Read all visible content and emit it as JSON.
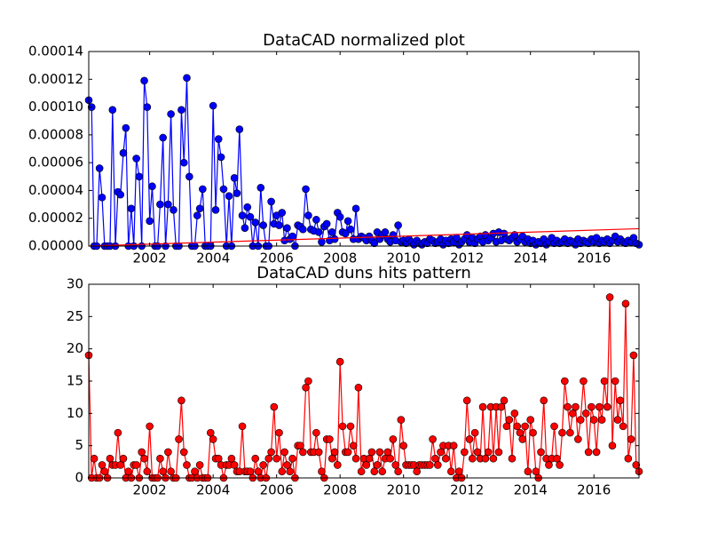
{
  "chart_data": [
    {
      "type": "line",
      "title": "DataCAD normalized plot",
      "xlim": [
        2000.08,
        2017.42
      ],
      "xticks": [
        2002,
        2004,
        2006,
        2008,
        2010,
        2012,
        2014,
        2016
      ],
      "ylim": [
        0,
        0.00014
      ],
      "yticks": [
        {
          "value": 0,
          "label": "0.00000"
        },
        {
          "value": 2e-05,
          "label": "0.00002"
        },
        {
          "value": 4e-05,
          "label": "0.00004"
        },
        {
          "value": 6e-05,
          "label": "0.00006"
        },
        {
          "value": 8e-05,
          "label": "0.00008"
        },
        {
          "value": 0.0001,
          "label": "0.00010"
        },
        {
          "value": 0.00012,
          "label": "0.00012"
        },
        {
          "value": 0.00014,
          "label": "0.00014"
        }
      ],
      "series": [
        {
          "color": "#0000ff",
          "marker": true,
          "x": [
            2000.08,
            2000.17,
            2000.25,
            2000.33,
            2000.42,
            2000.5,
            2000.58,
            2000.67,
            2000.75,
            2000.83,
            2000.92,
            2001,
            2001.08,
            2001.17,
            2001.25,
            2001.33,
            2001.42,
            2001.5,
            2001.58,
            2001.67,
            2001.75,
            2001.83,
            2001.92,
            2002,
            2002.08,
            2002.17,
            2002.25,
            2002.33,
            2002.42,
            2002.5,
            2002.58,
            2002.67,
            2002.75,
            2002.83,
            2002.92,
            2003,
            2003.08,
            2003.17,
            2003.25,
            2003.33,
            2003.42,
            2003.5,
            2003.58,
            2003.67,
            2003.75,
            2003.83,
            2003.92,
            2004,
            2004.08,
            2004.17,
            2004.25,
            2004.33,
            2004.42,
            2004.5,
            2004.58,
            2004.67,
            2004.75,
            2004.83,
            2004.92,
            2005,
            2005.08,
            2005.17,
            2005.25,
            2005.33,
            2005.42,
            2005.5,
            2005.58,
            2005.67,
            2005.75,
            2005.83,
            2005.92,
            2006,
            2006.08,
            2006.17,
            2006.25,
            2006.33,
            2006.42,
            2006.5,
            2006.58,
            2006.67,
            2006.75,
            2006.83,
            2006.92,
            2007,
            2007.08,
            2007.17,
            2007.25,
            2007.33,
            2007.42,
            2007.5,
            2007.58,
            2007.67,
            2007.75,
            2007.83,
            2007.92,
            2008,
            2008.08,
            2008.17,
            2008.25,
            2008.33,
            2008.42,
            2008.5,
            2008.58,
            2008.67,
            2008.75,
            2008.83,
            2008.92,
            2009,
            2009.08,
            2009.17,
            2009.25,
            2009.33,
            2009.42,
            2009.5,
            2009.58,
            2009.67,
            2009.75,
            2009.83,
            2009.92,
            2010,
            2010.08,
            2010.17,
            2010.25,
            2010.33,
            2010.42,
            2010.5,
            2010.58,
            2010.67,
            2010.75,
            2010.83,
            2010.92,
            2011,
            2011.08,
            2011.17,
            2011.25,
            2011.33,
            2011.42,
            2011.5,
            2011.58,
            2011.67,
            2011.75,
            2011.83,
            2011.92,
            2012,
            2012.08,
            2012.17,
            2012.25,
            2012.33,
            2012.42,
            2012.5,
            2012.58,
            2012.67,
            2012.75,
            2012.83,
            2012.92,
            2013,
            2013.08,
            2013.17,
            2013.25,
            2013.33,
            2013.42,
            2013.5,
            2013.58,
            2013.67,
            2013.75,
            2013.83,
            2013.92,
            2014,
            2014.08,
            2014.17,
            2014.25,
            2014.33,
            2014.42,
            2014.5,
            2014.58,
            2014.67,
            2014.75,
            2014.83,
            2014.92,
            2015,
            2015.08,
            2015.17,
            2015.25,
            2015.33,
            2015.42,
            2015.5,
            2015.58,
            2015.67,
            2015.75,
            2015.83,
            2015.92,
            2016,
            2016.08,
            2016.17,
            2016.25,
            2016.33,
            2016.42,
            2016.5,
            2016.58,
            2016.67,
            2016.75,
            2016.83,
            2016.92,
            2017,
            2017.08,
            2017.17,
            2017.25,
            2017.33,
            2017.42
          ],
          "values": [
            0.000105,
            0.0001,
            0,
            0,
            5.6e-05,
            3.5e-05,
            0,
            0,
            0,
            9.8e-05,
            0,
            3.9e-05,
            3.7e-05,
            6.7e-05,
            8.5e-05,
            0,
            2.7e-05,
            0,
            6.3e-05,
            5e-05,
            0,
            0.000119,
            0.0001,
            1.8e-05,
            4.3e-05,
            0,
            0,
            3e-05,
            7.8e-05,
            0,
            3e-05,
            9.5e-05,
            2.6e-05,
            0,
            0,
            9.8e-05,
            6e-05,
            0.000121,
            5e-05,
            0,
            0,
            2.2e-05,
            2.7e-05,
            4.1e-05,
            0,
            0,
            0,
            0.000101,
            2.6e-05,
            7.7e-05,
            6.4e-05,
            4.1e-05,
            0,
            3.6e-05,
            0,
            4.9e-05,
            3.8e-05,
            8.4e-05,
            2.2e-05,
            1.3e-05,
            2.8e-05,
            2.1e-05,
            0,
            1.7e-05,
            0,
            4.2e-05,
            1.5e-05,
            0,
            0,
            3.2e-05,
            1.6e-05,
            2.2e-05,
            1.5e-05,
            2.4e-05,
            4e-06,
            1.3e-05,
            5e-06,
            7e-06,
            0,
            1.5e-05,
            1.4e-05,
            1.2e-05,
            4.1e-05,
            2.2e-05,
            1.2e-05,
            1.1e-05,
            1.9e-05,
            1e-05,
            3e-06,
            1.4e-05,
            1.6e-05,
            4e-06,
            1e-05,
            5e-06,
            2.4e-05,
            2.1e-05,
            1e-05,
            9e-06,
            1.8e-05,
            1.2e-05,
            5e-06,
            2.7e-05,
            5e-06,
            7e-06,
            6e-06,
            4e-06,
            7e-06,
            4e-06,
            2e-06,
            1e-05,
            5e-06,
            8e-06,
            1e-05,
            5e-06,
            3e-06,
            8e-06,
            4e-06,
            1.5e-05,
            3e-06,
            4e-06,
            2e-06,
            5e-06,
            3e-06,
            1e-06,
            4e-06,
            2e-06,
            1e-06,
            3e-06,
            2e-06,
            5e-06,
            4e-06,
            2e-06,
            3e-06,
            5e-06,
            1e-06,
            4e-06,
            2e-06,
            5e-06,
            3e-06,
            6e-06,
            1e-06,
            3e-06,
            5e-06,
            8e-06,
            3e-06,
            6e-06,
            2e-06,
            5e-06,
            7e-06,
            3e-06,
            8e-06,
            4e-06,
            6e-06,
            9e-06,
            3e-06,
            1e-05,
            4e-06,
            9e-06,
            5e-06,
            4e-06,
            6e-06,
            8e-06,
            3e-06,
            5e-06,
            7e-06,
            3e-06,
            5e-06,
            2e-06,
            4e-06,
            1e-06,
            3e-06,
            2e-06,
            5e-06,
            1e-06,
            3e-06,
            6e-06,
            2e-06,
            4e-06,
            2e-06,
            3e-06,
            5e-06,
            2e-06,
            4e-06,
            3e-06,
            1e-06,
            5e-06,
            2e-06,
            4e-06,
            3e-06,
            2e-06,
            5e-06,
            3e-06,
            6e-06,
            2e-06,
            4e-06,
            3e-06,
            5e-06,
            2e-06,
            4e-06,
            7e-06,
            3e-06,
            5e-06,
            3e-06,
            2e-06,
            4e-06,
            3e-06,
            6e-06,
            2e-06,
            1e-06
          ]
        },
        {
          "color": "#ff0000",
          "marker": false,
          "x": [
            2000.08,
            2017.42
          ],
          "values": [
            0,
            1.25e-05
          ]
        }
      ]
    },
    {
      "type": "line",
      "title": "DataCAD duns hits pattern",
      "xlim": [
        2000.08,
        2017.42
      ],
      "xticks": [
        2002,
        2004,
        2006,
        2008,
        2010,
        2012,
        2014,
        2016
      ],
      "ylim": [
        0,
        30
      ],
      "yticks": [
        0,
        5,
        10,
        15,
        20,
        25,
        30
      ],
      "series": [
        {
          "color": "#ff0000",
          "marker": true,
          "x": [
            2000.08,
            2000.17,
            2000.25,
            2000.33,
            2000.42,
            2000.5,
            2000.58,
            2000.67,
            2000.75,
            2000.83,
            2000.92,
            2001,
            2001.08,
            2001.17,
            2001.25,
            2001.33,
            2001.42,
            2001.5,
            2001.58,
            2001.67,
            2001.75,
            2001.83,
            2001.92,
            2002,
            2002.08,
            2002.17,
            2002.25,
            2002.33,
            2002.42,
            2002.5,
            2002.58,
            2002.67,
            2002.75,
            2002.83,
            2002.92,
            2003,
            2003.08,
            2003.17,
            2003.25,
            2003.33,
            2003.42,
            2003.5,
            2003.58,
            2003.67,
            2003.75,
            2003.83,
            2003.92,
            2004,
            2004.08,
            2004.17,
            2004.25,
            2004.33,
            2004.42,
            2004.5,
            2004.58,
            2004.67,
            2004.75,
            2004.83,
            2004.92,
            2005,
            2005.08,
            2005.17,
            2005.25,
            2005.33,
            2005.42,
            2005.5,
            2005.58,
            2005.67,
            2005.75,
            2005.83,
            2005.92,
            2006,
            2006.08,
            2006.17,
            2006.25,
            2006.33,
            2006.42,
            2006.5,
            2006.58,
            2006.67,
            2006.75,
            2006.83,
            2006.92,
            2007,
            2007.08,
            2007.17,
            2007.25,
            2007.33,
            2007.42,
            2007.5,
            2007.58,
            2007.67,
            2007.75,
            2007.83,
            2007.92,
            2008,
            2008.08,
            2008.17,
            2008.25,
            2008.33,
            2008.42,
            2008.5,
            2008.58,
            2008.67,
            2008.75,
            2008.83,
            2008.92,
            2009,
            2009.08,
            2009.17,
            2009.25,
            2009.33,
            2009.42,
            2009.5,
            2009.58,
            2009.67,
            2009.75,
            2009.83,
            2009.92,
            2010,
            2010.08,
            2010.17,
            2010.25,
            2010.33,
            2010.42,
            2010.5,
            2010.58,
            2010.67,
            2010.75,
            2010.83,
            2010.92,
            2011,
            2011.08,
            2011.17,
            2011.25,
            2011.33,
            2011.42,
            2011.5,
            2011.58,
            2011.67,
            2011.75,
            2011.83,
            2011.92,
            2012,
            2012.08,
            2012.17,
            2012.25,
            2012.33,
            2012.42,
            2012.5,
            2012.58,
            2012.67,
            2012.75,
            2012.83,
            2012.92,
            2013,
            2013.08,
            2013.17,
            2013.25,
            2013.33,
            2013.42,
            2013.5,
            2013.58,
            2013.67,
            2013.75,
            2013.83,
            2013.92,
            2014,
            2014.08,
            2014.17,
            2014.25,
            2014.33,
            2014.42,
            2014.5,
            2014.58,
            2014.67,
            2014.75,
            2014.83,
            2014.92,
            2015,
            2015.08,
            2015.17,
            2015.25,
            2015.33,
            2015.42,
            2015.5,
            2015.58,
            2015.67,
            2015.75,
            2015.83,
            2015.92,
            2016,
            2016.08,
            2016.17,
            2016.25,
            2016.33,
            2016.42,
            2016.5,
            2016.58,
            2016.67,
            2016.75,
            2016.83,
            2016.92,
            2017,
            2017.08,
            2017.17,
            2017.25,
            2017.33,
            2017.42
          ],
          "values": [
            19,
            0,
            3,
            0,
            0,
            2,
            1,
            0,
            3,
            2,
            2,
            7,
            2,
            3,
            0,
            1,
            0,
            2,
            2,
            0,
            4,
            3,
            1,
            8,
            0,
            0,
            0,
            3,
            1,
            0,
            4,
            1,
            0,
            0,
            6,
            12,
            4,
            2,
            0,
            0,
            1,
            0,
            2,
            0,
            0,
            0,
            7,
            6,
            3,
            3,
            2,
            0,
            2,
            2,
            3,
            2,
            1,
            1,
            8,
            1,
            1,
            1,
            0,
            3,
            1,
            0,
            2,
            0,
            3,
            4,
            11,
            3,
            7,
            1,
            4,
            2,
            1,
            3,
            0,
            5,
            5,
            4,
            14,
            15,
            4,
            4,
            7,
            4,
            1,
            0,
            6,
            6,
            3,
            4,
            2,
            18,
            8,
            4,
            4,
            8,
            5,
            3,
            14,
            1,
            3,
            2,
            3,
            4,
            1,
            2,
            4,
            1,
            3,
            4,
            3,
            6,
            2,
            1,
            9,
            5,
            2,
            2,
            2,
            2,
            1,
            2,
            2,
            2,
            2,
            2,
            6,
            3,
            2,
            4,
            5,
            3,
            5,
            1,
            5,
            0,
            1,
            0,
            4,
            12,
            6,
            3,
            7,
            4,
            3,
            11,
            3,
            4,
            11,
            3,
            11,
            4,
            11,
            12,
            8,
            9,
            3,
            10,
            8,
            7,
            6,
            8,
            1,
            9,
            7,
            1,
            0,
            4,
            12,
            3,
            2,
            3,
            8,
            3,
            2,
            7,
            15,
            11,
            7,
            10,
            11,
            6,
            9,
            15,
            10,
            4,
            11,
            9,
            4,
            11,
            9,
            15,
            11,
            28,
            5,
            15,
            9,
            12,
            8,
            27,
            3,
            6,
            19,
            2,
            1
          ]
        }
      ]
    }
  ]
}
